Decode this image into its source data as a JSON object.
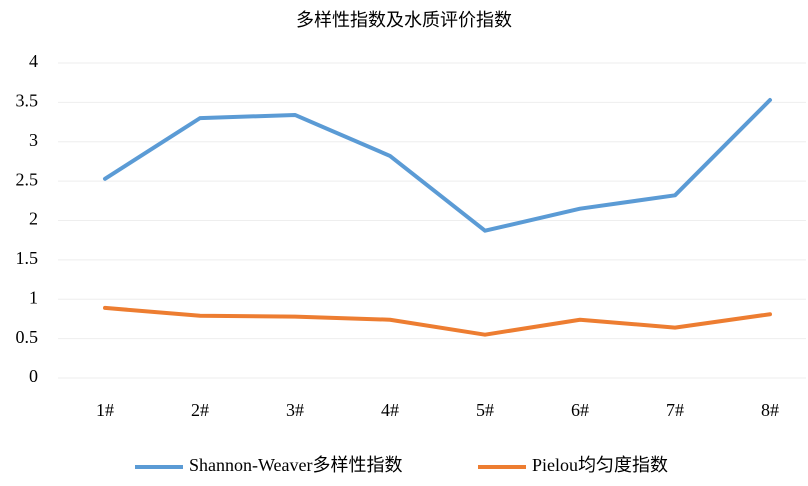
{
  "chart_data": {
    "type": "line",
    "title": "多样性指数及水质评价指数",
    "categories": [
      "1#",
      "2#",
      "3#",
      "4#",
      "5#",
      "6#",
      "7#",
      "8#"
    ],
    "series": [
      {
        "name": "Shannon-Weaver多样性指数",
        "color": "#5b9bd5",
        "values": [
          2.53,
          3.3,
          3.34,
          2.82,
          1.87,
          2.15,
          2.32,
          3.53
        ]
      },
      {
        "name": "Pielou均匀度指数",
        "color": "#ed7d31",
        "values": [
          0.89,
          0.79,
          0.78,
          0.74,
          0.55,
          0.74,
          0.64,
          0.81
        ]
      }
    ],
    "ylim": [
      0,
      4
    ],
    "yticks": [
      0,
      0.5,
      1,
      1.5,
      2,
      2.5,
      3,
      3.5,
      4
    ],
    "grid": true,
    "legend": "bottom"
  }
}
